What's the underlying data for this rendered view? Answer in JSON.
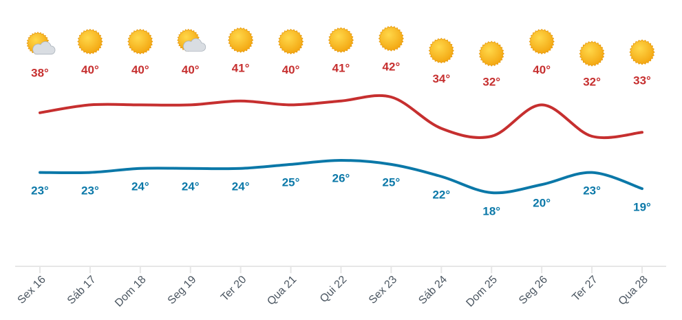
{
  "chart_data": {
    "type": "line",
    "categories": [
      "Sex 16",
      "Sáb 17",
      "Dom 18",
      "Seg 19",
      "Ter 20",
      "Qua 21",
      "Qui 22",
      "Sex 23",
      "Sáb 24",
      "Dom 25",
      "Seg 26",
      "Ter 27",
      "Qua 28"
    ],
    "conditions": [
      "partly-cloudy",
      "sun",
      "sun",
      "partly-cloudy",
      "sun",
      "sun",
      "sun",
      "sun",
      "sun",
      "sun",
      "sun",
      "sun",
      "sun"
    ],
    "series": [
      {
        "name": "Máxima",
        "color": "#c62f2f",
        "values": [
          38,
          40,
          40,
          40,
          41,
          40,
          41,
          42,
          34,
          32,
          40,
          32,
          33
        ],
        "value_labels": [
          "38°",
          "40°",
          "40°",
          "40°",
          "41°",
          "40°",
          "41°",
          "42°",
          "34°",
          "32°",
          "40°",
          "32°",
          "33°"
        ]
      },
      {
        "name": "Mínima",
        "color": "#0b78a8",
        "values": [
          23,
          23,
          24,
          24,
          24,
          25,
          26,
          25,
          22,
          18,
          20,
          23,
          19
        ],
        "value_labels": [
          "23°",
          "23°",
          "24°",
          "24°",
          "24°",
          "25°",
          "26°",
          "25°",
          "22°",
          "18°",
          "20°",
          "23°",
          "19°"
        ]
      }
    ]
  }
}
